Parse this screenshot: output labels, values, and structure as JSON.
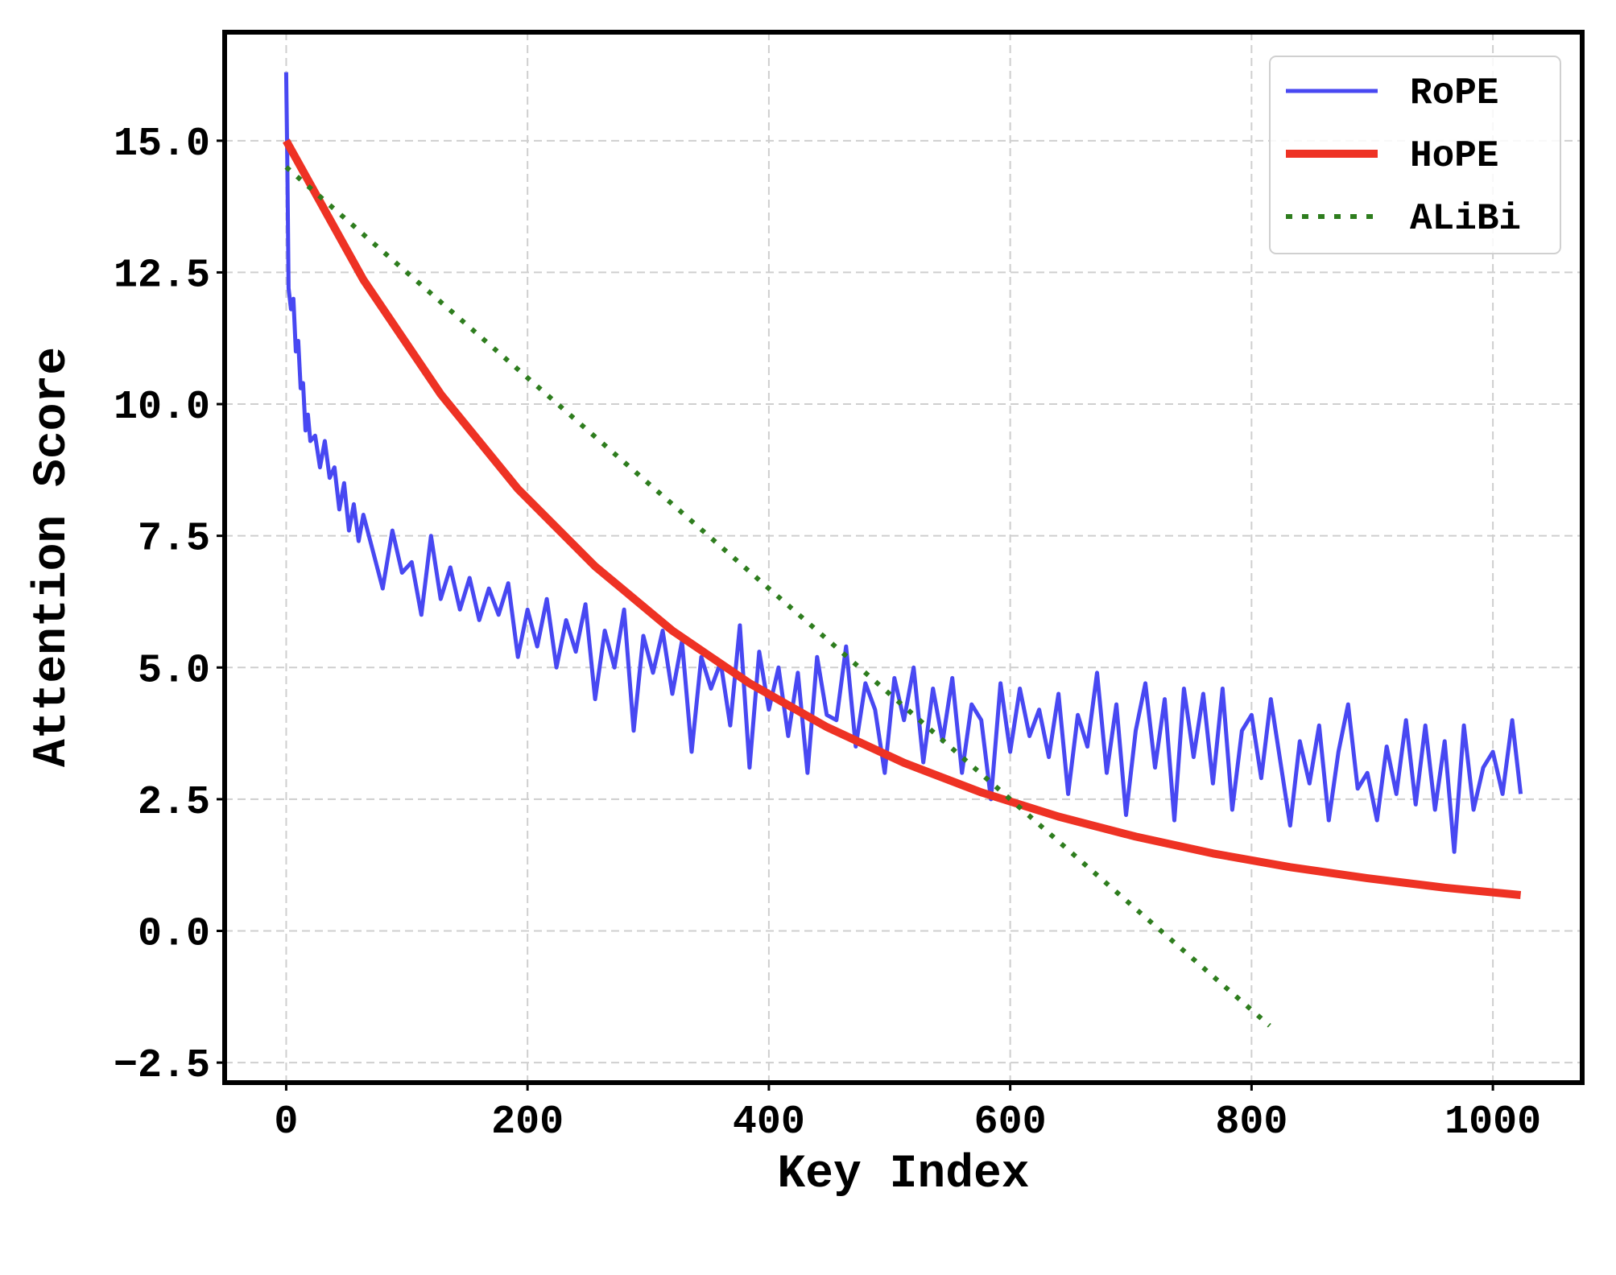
{
  "chart_data": {
    "type": "line",
    "title": "",
    "xlabel": "Key Index",
    "ylabel": "Attention Score",
    "xlim": [
      -51,
      1074
    ],
    "ylim": [
      -2.88,
      17.06
    ],
    "xticks": [
      0,
      200,
      400,
      600,
      800,
      1000
    ],
    "xtick_labels": [
      "0",
      "200",
      "400",
      "600",
      "800",
      "1000"
    ],
    "yticks": [
      -2.5,
      0,
      2.5,
      5,
      7.5,
      10,
      12.5,
      15
    ],
    "ytick_labels": [
      "−2.5",
      "0.0",
      "2.5",
      "5.0",
      "7.5",
      "10.0",
      "12.5",
      "15.0"
    ],
    "grid": true,
    "legend_position": "top-right",
    "series": [
      {
        "name": "RoPE",
        "color": "#4848f2",
        "style": "solid",
        "x": [
          0,
          1,
          2,
          4,
          6,
          8,
          10,
          12,
          14,
          16,
          18,
          20,
          24,
          28,
          32,
          36,
          40,
          44,
          48,
          52,
          56,
          60,
          64,
          72,
          80,
          88,
          96,
          104,
          112,
          120,
          128,
          136,
          144,
          152,
          160,
          168,
          176,
          184,
          192,
          200,
          208,
          216,
          224,
          232,
          240,
          248,
          256,
          264,
          272,
          280,
          288,
          296,
          304,
          312,
          320,
          328,
          336,
          344,
          352,
          360,
          368,
          376,
          384,
          392,
          400,
          408,
          416,
          424,
          432,
          440,
          448,
          456,
          464,
          472,
          480,
          488,
          496,
          504,
          512,
          520,
          528,
          536,
          544,
          552,
          560,
          568,
          576,
          584,
          592,
          600,
          608,
          616,
          624,
          632,
          640,
          648,
          656,
          664,
          672,
          680,
          688,
          696,
          704,
          712,
          720,
          728,
          736,
          744,
          752,
          760,
          768,
          776,
          784,
          792,
          800,
          808,
          816,
          824,
          832,
          840,
          848,
          856,
          864,
          872,
          880,
          888,
          896,
          904,
          912,
          920,
          928,
          936,
          944,
          952,
          960,
          968,
          976,
          984,
          992,
          1000,
          1008,
          1016,
          1023
        ],
        "y": [
          16.3,
          14.5,
          12.2,
          11.8,
          12.0,
          11.0,
          11.2,
          10.3,
          10.4,
          9.5,
          9.8,
          9.3,
          9.4,
          8.8,
          9.3,
          8.6,
          8.8,
          8.0,
          8.5,
          7.6,
          8.1,
          7.4,
          7.9,
          7.2,
          6.5,
          7.6,
          6.8,
          7.0,
          6.0,
          7.5,
          6.3,
          6.9,
          6.1,
          6.7,
          5.9,
          6.5,
          6.0,
          6.6,
          5.2,
          6.1,
          5.4,
          6.3,
          5.0,
          5.9,
          5.3,
          6.2,
          4.4,
          5.7,
          5.0,
          6.1,
          3.8,
          5.6,
          4.9,
          5.7,
          4.5,
          5.5,
          3.4,
          5.2,
          4.6,
          5.1,
          3.9,
          5.8,
          3.1,
          5.3,
          4.2,
          5.0,
          3.7,
          4.9,
          3.0,
          5.2,
          4.1,
          4.0,
          5.4,
          3.5,
          4.7,
          4.2,
          3.0,
          4.8,
          4.0,
          5.0,
          3.2,
          4.6,
          3.6,
          4.8,
          3.0,
          4.3,
          4.0,
          2.5,
          4.7,
          3.4,
          4.6,
          3.7,
          4.2,
          3.3,
          4.5,
          2.6,
          4.1,
          3.5,
          4.9,
          3.0,
          4.3,
          2.2,
          3.8,
          4.7,
          3.1,
          4.4,
          2.1,
          4.6,
          3.3,
          4.5,
          2.8,
          4.6,
          2.3,
          3.8,
          4.1,
          2.9,
          4.4,
          3.2,
          2.0,
          3.6,
          2.8,
          3.9,
          2.1,
          3.4,
          4.3,
          2.7,
          3.0,
          2.1,
          3.5,
          2.6,
          4.0,
          2.4,
          3.9,
          2.3,
          3.6,
          1.5,
          3.9,
          2.3,
          3.1,
          3.4,
          2.6,
          4.0,
          2.6
        ]
      },
      {
        "name": "HoPE",
        "color": "#ee3224",
        "style": "solid",
        "x": [
          0,
          64,
          128,
          192,
          256,
          320,
          384,
          448,
          512,
          576,
          640,
          704,
          768,
          832,
          896,
          960,
          1023
        ],
        "y": [
          15.0,
          12.36,
          10.19,
          8.39,
          6.92,
          5.7,
          4.7,
          3.87,
          3.19,
          2.63,
          2.17,
          1.79,
          1.47,
          1.21,
          1.0,
          0.82,
          0.68
        ]
      },
      {
        "name": "ALiBi",
        "color": "#2e7d1e",
        "style": "dotted",
        "x": [
          0,
          815
        ],
        "y": [
          14.5,
          -1.8
        ]
      }
    ]
  }
}
